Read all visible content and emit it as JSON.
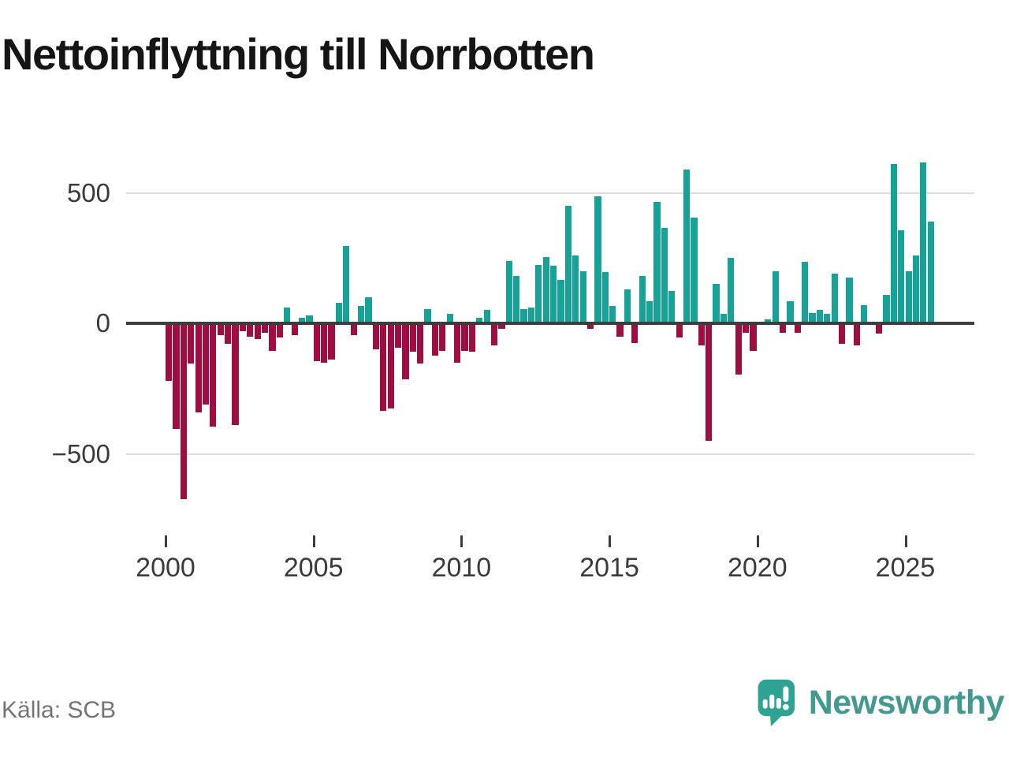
{
  "title": "Nettoinflyttning till Norrbotten",
  "source": "Källa: SCB",
  "branding": {
    "logo_text": "Newsworthy"
  },
  "chart_data": {
    "type": "bar",
    "title": "Nettoinflyttning till Norrbotten",
    "xlabel": "",
    "ylabel": "",
    "frequency": "quarterly",
    "start_period": "2000-Q1",
    "end_period": "2025-Q4",
    "grid": true,
    "legend": "none",
    "ylim": [
      -700,
      660
    ],
    "yticks": [
      {
        "label": "500",
        "value": 500
      },
      {
        "label": "0",
        "value": 0
      },
      {
        "label": "−500",
        "value": -500
      }
    ],
    "xticks": [
      2000,
      2005,
      2010,
      2015,
      2020,
      2025
    ],
    "positive_color": "#16a296",
    "negative_color": "#a00d40",
    "values": [
      -220,
      -405,
      -675,
      -155,
      -340,
      -310,
      -395,
      -45,
      -80,
      -390,
      -30,
      -50,
      -60,
      -35,
      -105,
      -55,
      60,
      -45,
      20,
      30,
      -145,
      -150,
      -140,
      80,
      295,
      -45,
      65,
      100,
      -100,
      -335,
      -325,
      -95,
      -215,
      -110,
      -155,
      55,
      -125,
      -105,
      35,
      -150,
      -105,
      -110,
      20,
      50,
      -85,
      -20,
      240,
      180,
      55,
      60,
      225,
      255,
      220,
      165,
      450,
      260,
      200,
      -20,
      485,
      195,
      65,
      -50,
      130,
      -75,
      180,
      85,
      465,
      365,
      125,
      -55,
      590,
      405,
      -85,
      -450,
      150,
      35,
      250,
      -195,
      -35,
      -105,
      0,
      15,
      200,
      -35,
      85,
      -35,
      235,
      40,
      50,
      35,
      190,
      -80,
      175,
      -85,
      70,
      0,
      -40,
      110,
      610,
      355,
      200,
      260,
      615,
      390
    ]
  }
}
